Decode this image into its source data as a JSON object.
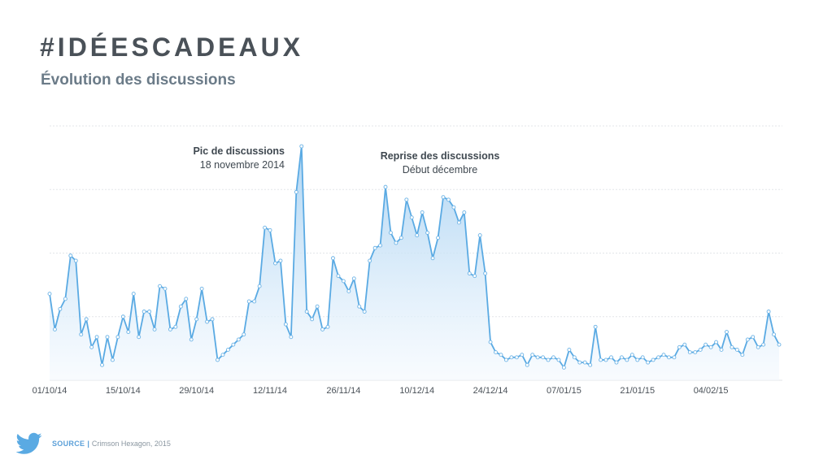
{
  "header": {
    "title": "#IDÉESCADEAUX",
    "subtitle": "Évolution des discussions"
  },
  "footer": {
    "source_label": "SOURCE",
    "separator": "|",
    "source_text": "Crimson Hexagon, 2015",
    "icon": "twitter-bird-icon"
  },
  "colors": {
    "line": "#5aaae3",
    "area_top": "#a9d2f2",
    "area_bottom": "#f4f9fe",
    "grid": "#e3e6e9",
    "marker_stroke": "#6cb3e6",
    "marker_fill": "#ffffff"
  },
  "chart_data": {
    "type": "area",
    "title": "",
    "xlabel": "",
    "ylabel": "",
    "grid": true,
    "legend": "none",
    "y_ticks_labeled": false,
    "ylim": [
      0,
      100
    ],
    "x_tick_labels": [
      "01/10/14",
      "15/10/14",
      "29/10/14",
      "12/11/14",
      "26/11/14",
      "10/12/14",
      "24/12/14",
      "07/01/15",
      "21/01/15",
      "04/02/15"
    ],
    "x_tick_index": [
      0,
      14,
      28,
      42,
      56,
      70,
      84,
      98,
      112,
      126
    ],
    "series": [
      {
        "values": [
          34,
          20,
          28,
          32,
          49,
          47,
          18,
          24,
          13,
          17,
          6,
          17,
          8,
          17,
          25,
          19,
          34,
          17,
          27,
          27,
          20,
          37,
          36,
          20,
          21,
          29,
          32,
          16,
          24,
          36,
          23,
          24,
          8,
          10,
          12,
          14,
          16,
          18,
          31,
          31,
          37,
          60,
          59,
          46,
          47,
          22,
          17,
          74,
          92,
          27,
          24,
          29,
          20,
          21,
          48,
          41,
          39,
          35,
          40,
          29,
          27,
          47,
          52,
          53,
          76,
          58,
          54,
          56,
          71,
          64,
          57,
          66,
          58,
          48,
          56,
          72,
          71,
          68,
          62,
          66,
          42,
          41,
          57,
          42,
          15,
          11,
          10,
          8,
          9,
          9,
          10,
          6,
          10,
          9,
          9,
          8,
          9,
          8,
          5,
          12,
          9,
          7,
          7,
          6,
          21,
          8,
          8,
          9,
          7,
          9,
          8,
          10,
          8,
          9,
          7,
          8,
          9,
          10,
          9,
          9,
          13,
          14,
          11,
          11,
          12,
          14,
          13,
          15,
          12,
          19,
          13,
          12,
          10,
          16,
          17,
          13,
          14,
          27,
          18,
          14
        ]
      }
    ],
    "annotations": [
      {
        "index": 48,
        "title": "Pic de discussions",
        "subtitle": "18 novembre 2014"
      },
      {
        "index": 75,
        "title": "Reprise des discussions",
        "subtitle": "Début décembre"
      }
    ]
  }
}
